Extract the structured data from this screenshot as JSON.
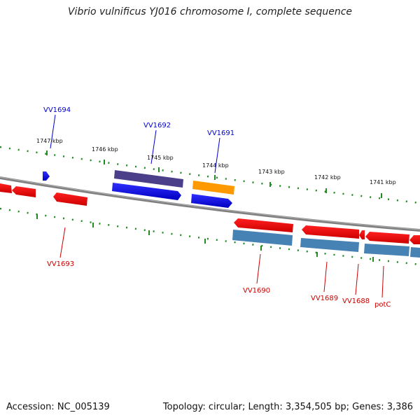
{
  "title": "Vibrio vulnificus YJ016 chromosome I, complete sequence",
  "footer": {
    "accession": "Accession: NC_005139",
    "topology": "Topology: circular; Length: 3,354,505 bp; Genes: 3,386"
  },
  "scale_labels": [
    "1747 kbp",
    "1746 kbp",
    "1745 kbp",
    "1744 kbp",
    "1743 kbp",
    "1742 kbp",
    "1741 kbp"
  ],
  "gene_labels": {
    "top": [
      "VV1694",
      "VV1692",
      "VV1691"
    ],
    "bottom": [
      "VV1693",
      "VV1690",
      "VV1689",
      "VV1688",
      "potC"
    ]
  },
  "colors": {
    "forward_cds": "#0000ff",
    "forward_dark": "#4b3f8a",
    "forward_orange": "#ff9900",
    "reverse_cds": "#ff0000",
    "reverse_steel": "#4682b4",
    "label_top": "#0000cc",
    "label_bottom": "#cc0000",
    "tick": "#228b22",
    "backbone": "#888888"
  }
}
